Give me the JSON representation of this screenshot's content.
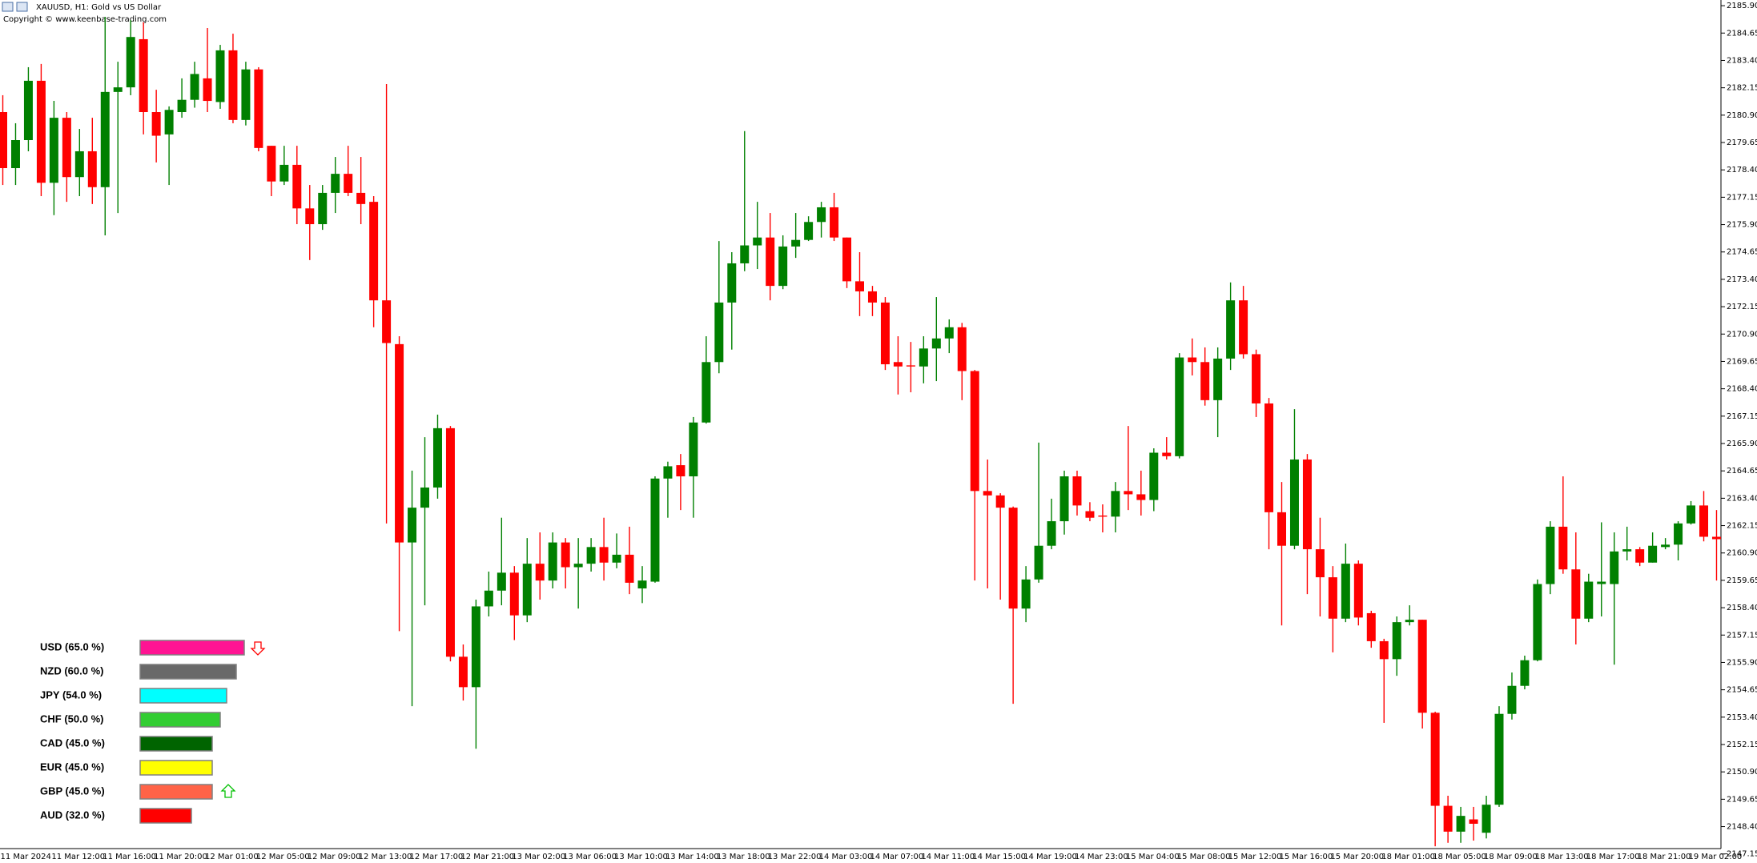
{
  "chart_data": [
    {
      "type": "candlestick",
      "title": "XAUUSD, H1:  Gold vs US Dollar",
      "subtitle": "Copyright © www.keenbase-trading.com",
      "categories": [
        "11 Mar 2024",
        null,
        null,
        null,
        "11 Mar 12:00",
        null,
        null,
        null,
        "11 Mar 16:00",
        null,
        null,
        null,
        "11 Mar 20:00",
        null,
        null,
        null,
        "12 Mar 01:00",
        null,
        null,
        null,
        "12 Mar 05:00",
        null,
        null,
        null,
        "12 Mar 09:00",
        null,
        null,
        null,
        "12 Mar 13:00",
        null,
        null,
        null,
        "12 Mar 17:00",
        null,
        null,
        null,
        "12 Mar 21:00",
        null,
        null,
        null,
        "13 Mar 02:00",
        null,
        null,
        null,
        "13 Mar 06:00",
        null,
        null,
        null,
        "13 Mar 10:00",
        null,
        null,
        null,
        "13 Mar 14:00",
        null,
        null,
        null,
        "13 Mar 18:00",
        null,
        null,
        null,
        "13 Mar 22:00",
        null,
        null,
        null,
        "14 Mar 03:00",
        null,
        null,
        null,
        "14 Mar 07:00",
        null,
        null,
        null,
        "14 Mar 11:00",
        null,
        null,
        null,
        "14 Mar 15:00",
        null,
        null,
        null,
        "14 Mar 19:00",
        null,
        null,
        null,
        "14 Mar 23:00",
        null,
        null,
        null,
        "15 Mar 04:00",
        null,
        null,
        null,
        "15 Mar 08:00",
        null,
        null,
        null,
        "15 Mar 12:00",
        null,
        null,
        null,
        "15 Mar 16:00",
        null,
        null,
        null,
        "15 Mar 20:00",
        null,
        null,
        null,
        "18 Mar 01:00",
        null,
        null,
        null,
        "18 Mar 05:00",
        null,
        null,
        null,
        "18 Mar 09:00",
        null,
        null,
        null,
        "18 Mar 13:00",
        null,
        null,
        null,
        "18 Mar 17:00",
        null,
        null,
        null,
        "18 Mar 21:00",
        null,
        null,
        null,
        "19 Mar 02:00",
        null,
        null
      ],
      "open": [
        2181.04,
        2178.48,
        2179.76,
        2182.47,
        2177.81,
        2180.78,
        2178.07,
        2179.25,
        2177.61,
        2181.96,
        2182.17,
        2184.37,
        2181.04,
        2180.02,
        2181.04,
        2181.6,
        2182.58,
        2181.5,
        2183.86,
        2180.68,
        2182.99,
        2179.5,
        2177.87,
        2178.63,
        2176.64,
        2175.92,
        2177.35,
        2178.22,
        2177.35,
        2176.94,
        2172.44,
        2170.44,
        2161.38,
        2162.97,
        2163.89,
        2166.6,
        2156.16,
        2154.77,
        2158.46,
        2159.18,
        2160.0,
        2158.05,
        2160.41,
        2159.64,
        2161.38,
        2160.25,
        2160.41,
        2161.17,
        2160.46,
        2160.82,
        2159.28,
        2159.59,
        2164.3,
        2164.91,
        2164.4,
        2166.86,
        2169.62,
        2172.34,
        2174.13,
        2174.95,
        2175.31,
        2173.1,
        2174.9,
        2175.2,
        2176.02,
        2176.69,
        2175.31,
        2173.31,
        2172.85,
        2172.34,
        2169.62,
        2169.47,
        2169.42,
        2170.24,
        2170.7,
        2171.21,
        2169.21,
        2163.73,
        2163.53,
        2162.97,
        2158.36,
        2159.69,
        2161.23,
        2162.35,
        2164.4,
        2162.81,
        2162.61,
        2162.56,
        2163.73,
        2163.58,
        2163.32,
        2165.48,
        2165.32,
        2169.83,
        2169.62,
        2167.88,
        2169.78,
        2172.44,
        2169.98,
        2167.73,
        2162.76,
        2161.23,
        2165.17,
        2161.07,
        2159.79,
        2157.9,
        2160.41,
        2158.15,
        2156.87,
        2156.05,
        2157.74,
        2157.85,
        2153.6,
        2149.35,
        2148.17,
        2148.73,
        2148.12,
        2149.4,
        2153.55,
        2154.83,
        2156.0,
        2159.48,
        2162.1,
        2160.15,
        2157.9,
        2159.48,
        2159.48,
        2160.97,
        2161.07,
        2160.46,
        2161.17,
        2161.28,
        2162.25,
        2163.07,
        2161.64
      ],
      "high": [
        2181.81,
        2180.53,
        2183.09,
        2183.24,
        2181.55,
        2181.04,
        2180.27,
        2180.78,
        2185.39,
        2183.34,
        2185.24,
        2185.14,
        2182.06,
        2181.3,
        2182.58,
        2183.34,
        2184.88,
        2184.11,
        2184.62,
        2183.34,
        2183.09,
        2179.5,
        2179.5,
        2179.5,
        2177.71,
        2177.71,
        2178.99,
        2179.5,
        2178.99,
        2177.2,
        2182.32,
        2170.8,
        2164.66,
        2166.19,
        2167.22,
        2166.7,
        2156.72,
        2158.77,
        2160.05,
        2162.51,
        2160.3,
        2161.58,
        2161.84,
        2161.84,
        2161.58,
        2161.58,
        2161.58,
        2162.51,
        2161.79,
        2162.1,
        2160.3,
        2164.4,
        2165.07,
        2165.42,
        2167.11,
        2170.8,
        2175.15,
        2174.64,
        2180.17,
        2176.94,
        2176.43,
        2175.41,
        2176.43,
        2176.28,
        2176.94,
        2177.35,
        2175.31,
        2174.64,
        2173.1,
        2172.59,
        2170.8,
        2170.54,
        2170.8,
        2172.59,
        2171.57,
        2171.41,
        2169.26,
        2165.17,
        2163.63,
        2163.02,
        2160.3,
        2165.94,
        2163.38,
        2164.66,
        2164.66,
        2163.22,
        2163.12,
        2164.14,
        2166.7,
        2164.66,
        2165.68,
        2166.19,
        2170.03,
        2170.7,
        2170.29,
        2170.29,
        2173.26,
        2173.1,
        2170.19,
        2167.98,
        2164.14,
        2167.47,
        2165.42,
        2162.51,
        2160.3,
        2161.33,
        2160.56,
        2158.26,
        2156.98,
        2158.0,
        2158.51,
        2157.85,
        2153.65,
        2149.81,
        2149.3,
        2149.3,
        2149.81,
        2153.9,
        2155.44,
        2156.21,
        2159.69,
        2162.35,
        2164.4,
        2161.84,
        2159.95,
        2162.3,
        2161.84,
        2162.1,
        2161.17,
        2161.84,
        2161.58,
        2162.35,
        2163.27,
        2163.73,
        2162.86
      ],
      "low": [
        2177.71,
        2177.71,
        2179.25,
        2177.2,
        2176.33,
        2176.94,
        2177.2,
        2176.84,
        2175.41,
        2176.43,
        2181.81,
        2180.02,
        2178.74,
        2177.71,
        2180.78,
        2181.24,
        2181.04,
        2181.19,
        2180.53,
        2180.43,
        2179.25,
        2177.2,
        2177.71,
        2175.92,
        2174.28,
        2175.66,
        2176.43,
        2177.2,
        2175.92,
        2171.21,
        2162.25,
        2157.33,
        2153.9,
        2158.51,
        2163.38,
        2155.95,
        2154.16,
        2151.96,
        2158.0,
        2158.51,
        2156.92,
        2157.74,
        2158.77,
        2159.28,
        2159.28,
        2158.36,
        2160.05,
        2159.64,
        2160.2,
        2159.02,
        2158.61,
        2159.54,
        2162.51,
        2162.86,
        2162.51,
        2166.81,
        2169.11,
        2170.19,
        2173.77,
        2173.87,
        2172.44,
        2172.95,
        2174.38,
        2175.15,
        2175.31,
        2175.15,
        2173.0,
        2171.72,
        2171.72,
        2169.26,
        2168.14,
        2168.24,
        2168.65,
        2168.75,
        2170.03,
        2167.88,
        2159.64,
        2159.28,
        2158.77,
        2154.01,
        2157.74,
        2159.54,
        2161.07,
        2161.74,
        2162.61,
        2162.35,
        2161.84,
        2161.84,
        2162.86,
        2162.61,
        2162.81,
        2165.17,
        2165.22,
        2169.01,
        2167.63,
        2166.19,
        2169.26,
        2169.78,
        2167.11,
        2161.07,
        2157.59,
        2161.07,
        2159.02,
        2158.0,
        2156.36,
        2157.74,
        2157.59,
        2156.57,
        2153.14,
        2155.29,
        2157.59,
        2152.88,
        2147.5,
        2147.66,
        2147.66,
        2147.76,
        2147.86,
        2149.3,
        2153.29,
        2154.67,
        2155.95,
        2159.02,
        2159.95,
        2156.72,
        2157.74,
        2158.0,
        2155.8,
        2160.56,
        2160.3,
        2160.46,
        2161.07,
        2160.56,
        2162.2,
        2161.43,
        2159.64
      ],
      "close": [
        2178.48,
        2179.76,
        2182.47,
        2177.81,
        2180.78,
        2178.07,
        2179.25,
        2177.61,
        2181.96,
        2182.17,
        2184.47,
        2181.04,
        2179.96,
        2181.14,
        2181.6,
        2182.78,
        2181.55,
        2183.86,
        2180.68,
        2182.99,
        2179.4,
        2177.87,
        2178.63,
        2176.64,
        2175.92,
        2177.35,
        2178.22,
        2177.35,
        2176.84,
        2172.44,
        2170.49,
        2161.38,
        2162.97,
        2163.89,
        2166.6,
        2156.16,
        2154.77,
        2158.46,
        2159.18,
        2160.0,
        2158.05,
        2160.41,
        2159.64,
        2161.38,
        2160.25,
        2160.41,
        2161.17,
        2160.46,
        2160.82,
        2159.54,
        2159.64,
        2164.3,
        2164.86,
        2164.4,
        2166.86,
        2169.62,
        2172.34,
        2174.13,
        2174.95,
        2175.31,
        2173.1,
        2174.9,
        2175.2,
        2176.02,
        2176.69,
        2175.31,
        2173.31,
        2172.85,
        2172.34,
        2169.52,
        2169.42,
        2169.42,
        2170.24,
        2170.7,
        2171.21,
        2169.21,
        2163.73,
        2163.53,
        2162.97,
        2158.36,
        2159.69,
        2161.23,
        2162.35,
        2164.4,
        2163.07,
        2162.51,
        2162.56,
        2163.73,
        2163.58,
        2163.32,
        2165.48,
        2165.32,
        2169.83,
        2169.62,
        2167.88,
        2169.78,
        2172.44,
        2169.98,
        2167.73,
        2162.76,
        2161.23,
        2165.17,
        2161.07,
        2159.79,
        2157.9,
        2160.41,
        2157.95,
        2156.87,
        2156.05,
        2157.74,
        2157.85,
        2153.6,
        2149.35,
        2148.17,
        2148.89,
        2148.53,
        2149.4,
        2153.55,
        2154.83,
        2156.0,
        2159.48,
        2162.1,
        2160.15,
        2157.9,
        2159.59,
        2159.59,
        2160.97,
        2161.07,
        2160.46,
        2161.23,
        2161.28,
        2162.25,
        2163.07,
        2161.64,
        2161.53
      ],
      "up_color": "#008000",
      "down_color": "#ff0000",
      "ylim": [
        2146.84,
        2186.16
      ],
      "yticks": [
        {
          "value": 2185.9,
          "label": "2185.90"
        },
        2184.65,
        {
          "value": 2183.4,
          "label": "2183.40"
        },
        2182.15,
        {
          "value": 2180.9,
          "label": "2180.90"
        },
        2179.65,
        {
          "value": 2178.4,
          "label": "2178.40"
        },
        2177.15,
        {
          "value": 2175.9,
          "label": "2175.90"
        },
        2174.65,
        {
          "value": 2173.4,
          "label": "2173.40"
        },
        2172.15,
        {
          "value": 2170.9,
          "label": "2170.90"
        },
        2169.65,
        {
          "value": 2168.4,
          "label": "2168.40"
        },
        2167.15,
        {
          "value": 2165.9,
          "label": "2165.90"
        },
        2164.65,
        {
          "value": 2163.4,
          "label": "2163.40"
        },
        2162.15,
        {
          "value": 2160.9,
          "label": "2160.90"
        },
        2159.65,
        {
          "value": 2158.4,
          "label": "2158.40"
        },
        2157.15,
        {
          "value": 2155.9,
          "label": "2155.90"
        },
        2154.65,
        {
          "value": 2153.4,
          "label": "2153.40"
        },
        2152.15,
        {
          "value": 2150.9,
          "label": "2150.90"
        },
        2149.65,
        {
          "value": 2148.4,
          "label": "2148.40"
        },
        2147.15
      ],
      "grid": false
    },
    {
      "type": "bar",
      "orientation": "horizontal",
      "categories": [
        "USD (65.0 %)",
        "NZD (60.0 %)",
        "JPY (54.0 %)",
        "CHF (50.0 %)",
        "CAD (45.0 %)",
        "EUR (45.0 %)",
        "GBP (45.0 %)",
        "AUD (32.0 %)"
      ],
      "values": [
        65,
        60,
        54,
        50,
        45,
        45,
        45,
        32
      ],
      "colors": [
        "#ff1493",
        "#696969",
        "#00ffff",
        "#32cd32",
        "#006400",
        "#ffff00",
        "#ff6347",
        "#ff0000"
      ]
    }
  ]
}
